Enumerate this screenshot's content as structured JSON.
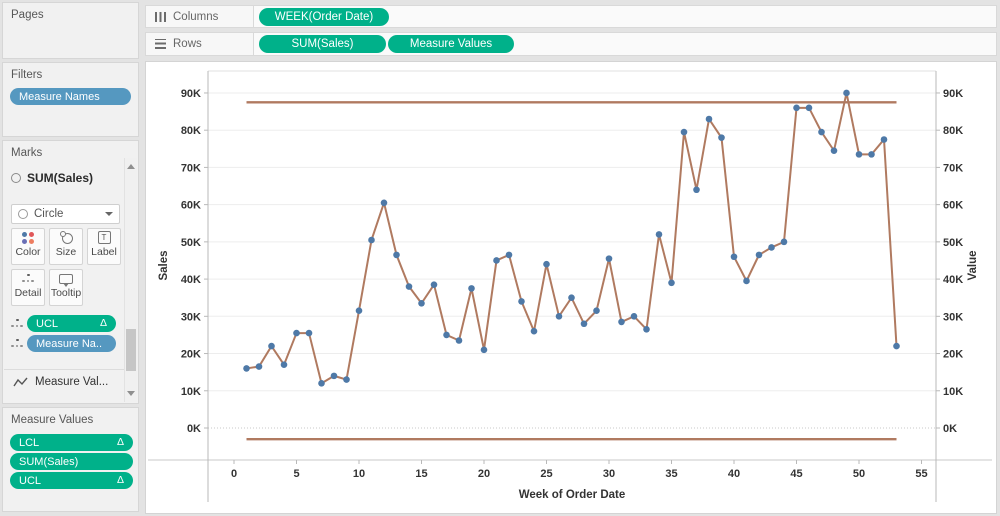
{
  "sidebar": {
    "pages": {
      "title": "Pages"
    },
    "filters": {
      "title": "Filters",
      "pill": "Measure Names"
    },
    "marks": {
      "title": "Marks",
      "header": "SUM(Sales)",
      "mark_type": "Circle",
      "buttons": {
        "color": "Color",
        "size": "Size",
        "label": "Label",
        "detail": "Detail",
        "tooltip": "Tooltip"
      },
      "pills": [
        {
          "label": "UCL",
          "delta": "Δ"
        },
        {
          "label": "Measure Na.."
        }
      ],
      "collapsed": "Measure Val..."
    },
    "measure_values": {
      "title": "Measure Values",
      "pills": [
        {
          "label": "LCL",
          "delta": "Δ"
        },
        {
          "label": "SUM(Sales)"
        },
        {
          "label": "UCL",
          "delta": "Δ"
        }
      ]
    }
  },
  "shelves": {
    "columns": {
      "label": "Columns",
      "pill": "WEEK(Order Date)"
    },
    "rows": {
      "label": "Rows",
      "pill1": "SUM(Sales)",
      "pill2": "Measure Values"
    }
  },
  "chart_data": {
    "type": "line",
    "title": "",
    "xlabel": "Week of Order Date",
    "ylabel_left": "Sales",
    "ylabel_right": "Value",
    "grid": "horizontal gridlines every 10K, dotted zero line",
    "legend_position": "none",
    "xlim": [
      -2.08,
      56.16
    ],
    "ylim": [
      -8600,
      95900
    ],
    "x_ticks": [
      0,
      5,
      10,
      15,
      20,
      25,
      30,
      35,
      40,
      45,
      50,
      55
    ],
    "y_ticks": [
      {
        "value": 0,
        "label": "0K"
      },
      {
        "value": 10000,
        "label": "10K"
      },
      {
        "value": 20000,
        "label": "20K"
      },
      {
        "value": 30000,
        "label": "30K"
      },
      {
        "value": 40000,
        "label": "40K"
      },
      {
        "value": 50000,
        "label": "50K"
      },
      {
        "value": 60000,
        "label": "60K"
      },
      {
        "value": 70000,
        "label": "70K"
      },
      {
        "value": 80000,
        "label": "80K"
      },
      {
        "value": 90000,
        "label": "90K"
      }
    ],
    "weeks": [
      1,
      2,
      3,
      4,
      5,
      6,
      7,
      8,
      9,
      10,
      11,
      12,
      13,
      14,
      15,
      16,
      17,
      18,
      19,
      20,
      21,
      22,
      23,
      24,
      25,
      26,
      27,
      28,
      29,
      30,
      31,
      32,
      33,
      34,
      35,
      36,
      37,
      38,
      39,
      40,
      41,
      42,
      43,
      44,
      45,
      46,
      47,
      48,
      49,
      50,
      51,
      52,
      53
    ],
    "series": [
      {
        "name": "SUM(Sales)",
        "values": [
          16000,
          16500,
          22000,
          17000,
          25500,
          25500,
          12000,
          14000,
          13000,
          31500,
          50500,
          60500,
          46500,
          38000,
          33500,
          38500,
          25000,
          23500,
          37500,
          21000,
          45000,
          46500,
          34000,
          26000,
          44000,
          30000,
          35000,
          28000,
          31500,
          45500,
          28500,
          30000,
          26500,
          52000,
          39000,
          79500,
          64000,
          83000,
          78000,
          46000,
          39500,
          46500,
          48500,
          50000,
          86000,
          86000,
          79500,
          74500,
          90000,
          73500,
          73500,
          77500,
          22000
        ]
      }
    ],
    "reference_lines": {
      "ucl": 87500,
      "lcl": -3000
    },
    "colors": {
      "line": "#b07a60",
      "point": "#4e79a7"
    }
  }
}
